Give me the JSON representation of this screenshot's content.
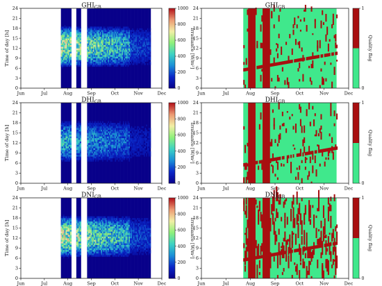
{
  "colors": {
    "irr_stops": [
      "#08008a",
      "#0a26c8",
      "#1b8fd8",
      "#3dd2c4",
      "#8ef07a",
      "#f2efa6",
      "#ec9a74",
      "#b3121a"
    ],
    "flag_good": "#40e88c",
    "flag_bad": "#a80f10"
  },
  "chart_data": [
    {
      "type": "heatmap",
      "panel": "irradiance",
      "title_main": "GHI",
      "title_sub": "GB",
      "ylabel": "Time of day [h]",
      "colorbar_label": "Irradiance [W/m²]",
      "x_ticks": [
        "Jun",
        "Jul",
        "Aug",
        "Sep",
        "Oct",
        "Nov",
        "Dec"
      ],
      "y_ticks": [
        "0",
        "3",
        "6",
        "9",
        "12",
        "15",
        "18",
        "21",
        "24"
      ],
      "colorbar_ticks": [
        "0",
        "200",
        "400",
        "600",
        "800",
        "1000"
      ],
      "clim": [
        0,
        1000
      ],
      "day_range": [
        0,
        183
      ],
      "hour_range": [
        0,
        24
      ],
      "data_periods_days": [
        [
          52,
          65
        ],
        [
          72,
          78
        ],
        [
          86,
          168
        ]
      ],
      "daylight_hours": [
        6,
        19
      ],
      "peak_value": 860
    },
    {
      "type": "heatmap",
      "panel": "flag",
      "title_main": "GHI",
      "title_sub": "GB",
      "ylabel": "",
      "colorbar_label": "Quality flag",
      "x_ticks": [
        "Jun",
        "Jul",
        "Aug",
        "Sep",
        "Oct",
        "Nov",
        "Dec"
      ],
      "y_ticks": [
        "0",
        "3",
        "6",
        "9",
        "12",
        "15",
        "18",
        "21",
        "24"
      ],
      "colorbar_ticks": [
        "0",
        "1"
      ],
      "flag_values": [
        0,
        1
      ],
      "day_range": [
        0,
        183
      ],
      "data_period_days": [
        52,
        168
      ],
      "full_flag_1_days": [
        [
          57,
          66
        ],
        [
          75,
          84
        ]
      ]
    },
    {
      "type": "heatmap",
      "panel": "irradiance",
      "title_main": "DHI",
      "title_sub": "GB",
      "ylabel": "Time of day [h]",
      "colorbar_label": "Irradiance [W/m²]",
      "x_ticks": [
        "Jun",
        "Jul",
        "Aug",
        "Sep",
        "Oct",
        "Nov",
        "Dec"
      ],
      "y_ticks": [
        "0",
        "3",
        "6",
        "9",
        "12",
        "15",
        "18",
        "21",
        "24"
      ],
      "colorbar_ticks": [
        "0",
        "200",
        "400",
        "600",
        "800",
        "1000"
      ],
      "clim": [
        0,
        1000
      ],
      "day_range": [
        0,
        183
      ],
      "hour_range": [
        0,
        24
      ],
      "data_periods_days": [
        [
          52,
          65
        ],
        [
          72,
          78
        ],
        [
          86,
          168
        ]
      ],
      "daylight_hours": [
        6,
        19
      ],
      "peak_value": 520
    },
    {
      "type": "heatmap",
      "panel": "flag",
      "title_main": "DHI",
      "title_sub": "GB",
      "ylabel": "",
      "colorbar_label": "Quality flag",
      "x_ticks": [
        "Jun",
        "Jul",
        "Aug",
        "Sep",
        "Oct",
        "Nov",
        "Dec"
      ],
      "y_ticks": [
        "0",
        "3",
        "6",
        "9",
        "12",
        "15",
        "18",
        "21",
        "24"
      ],
      "colorbar_ticks": [
        "0",
        "1"
      ],
      "flag_values": [
        0,
        1
      ],
      "day_range": [
        0,
        183
      ],
      "data_period_days": [
        52,
        168
      ],
      "full_flag_1_days": [
        [
          57,
          66
        ],
        [
          75,
          84
        ]
      ]
    },
    {
      "type": "heatmap",
      "panel": "irradiance",
      "title_main": "DNI",
      "title_sub": "GB",
      "ylabel": "Time of day [h]",
      "colorbar_label": "Irradiance [W/m²]",
      "x_ticks": [
        "Jun",
        "Jul",
        "Aug",
        "Sep",
        "Oct",
        "Nov",
        "Dec"
      ],
      "y_ticks": [
        "0",
        "3",
        "6",
        "9",
        "12",
        "15",
        "18",
        "21",
        "24"
      ],
      "colorbar_ticks": [
        "0",
        "200",
        "400",
        "600",
        "800",
        "1000"
      ],
      "clim": [
        0,
        1000
      ],
      "day_range": [
        0,
        183
      ],
      "hour_range": [
        0,
        24
      ],
      "data_periods_days": [
        [
          52,
          65
        ],
        [
          72,
          78
        ],
        [
          86,
          168
        ]
      ],
      "daylight_hours": [
        6,
        19
      ],
      "peak_value": 880
    },
    {
      "type": "heatmap",
      "panel": "flag",
      "title_main": "DNI",
      "title_sub": "GB",
      "ylabel": "",
      "colorbar_label": "Quality flag",
      "x_ticks": [
        "Jun",
        "Jul",
        "Aug",
        "Sep",
        "Oct",
        "Nov",
        "Dec"
      ],
      "y_ticks": [
        "0",
        "3",
        "6",
        "9",
        "12",
        "15",
        "18",
        "21",
        "24"
      ],
      "colorbar_ticks": [
        "0",
        "1"
      ],
      "flag_values": [
        0,
        1
      ],
      "day_range": [
        0,
        183
      ],
      "data_period_days": [
        52,
        168
      ],
      "full_flag_1_days": [
        [
          57,
          66
        ],
        [
          75,
          84
        ]
      ]
    }
  ]
}
